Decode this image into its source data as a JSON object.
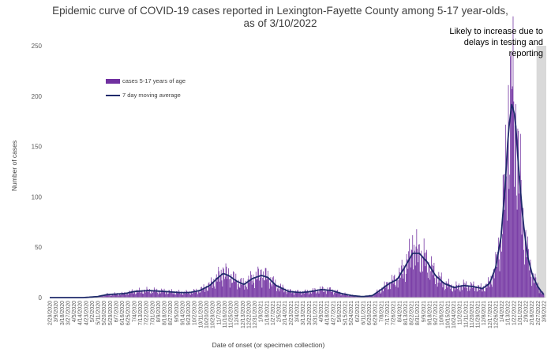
{
  "chart_data": {
    "type": "bar",
    "title": "Epidemic curve of COVID-19 cases reported in Lexington-Fayette County among 5-17 year-olds, as of 3/10/2022",
    "xlabel": "Date of onset (or specimen collection)",
    "ylabel": "Number of cases",
    "ylim": [
      0,
      250
    ],
    "yticks": [
      0,
      50,
      100,
      150,
      200,
      250
    ],
    "grid": false,
    "legend_position": "upper-left",
    "shaded_note": "Likely to increase due to delays in testing and reporting",
    "colors": {
      "bars": "#7030a0",
      "line": "#1f2a6b",
      "shade": "#d9d9d9"
    },
    "series": [
      {
        "name": "cases 5-17 years of age",
        "kind": "bar"
      },
      {
        "name": "7 day moving average",
        "kind": "line"
      }
    ],
    "x_tick_labels": [
      "2/29/2020",
      "3/9/2020",
      "3/18/2020",
      "3/27/2020",
      "4/5/2020",
      "4/14/2020",
      "4/23/2020",
      "5/2/2020",
      "5/11/2020",
      "5/20/2020",
      "5/29/2020",
      "6/7/2020",
      "6/16/2020",
      "6/25/2020",
      "7/4/2020",
      "7/13/2020",
      "7/22/2020",
      "7/31/2020",
      "8/9/2020",
      "8/18/2020",
      "8/27/2020",
      "9/5/2020",
      "9/14/2020",
      "9/23/2020",
      "10/2/2020",
      "10/11/2020",
      "10/20/2020",
      "10/29/2020",
      "11/7/2020",
      "11/16/2020",
      "11/25/2020",
      "12/4/2020",
      "12/13/2020",
      "12/22/2020",
      "12/31/2020",
      "1/9/2021",
      "1/18/2021",
      "1/27/2021",
      "2/5/2021",
      "2/14/2021",
      "2/23/2021",
      "3/4/2021",
      "3/13/2021",
      "3/22/2021",
      "3/31/2021",
      "4/9/2021",
      "4/18/2021",
      "4/27/2021",
      "5/6/2021",
      "5/15/2021",
      "5/24/2021",
      "6/2/2021",
      "6/11/2021",
      "6/20/2021",
      "6/29/2021",
      "7/8/2021",
      "7/17/2021",
      "7/26/2021",
      "8/4/2021",
      "8/13/2021",
      "8/22/2021",
      "8/31/2021",
      "9/9/2021",
      "9/18/2021",
      "9/27/2021",
      "10/6/2021",
      "10/15/2021",
      "10/24/2021",
      "11/2/2021",
      "11/11/2021",
      "11/20/2021",
      "11/29/2021",
      "12/8/2021",
      "12/17/2021",
      "12/26/2021",
      "1/4/2022",
      "1/13/2022",
      "1/22/2022",
      "1/31/2022",
      "2/9/2022",
      "2/18/2022",
      "2/27/2022",
      "3/8/2022"
    ],
    "x_start": "2/29/2020",
    "x_end": "3/8/2022",
    "shade_from": "2/25/2022",
    "moving_average_points": [
      [
        "2/29/2020",
        0
      ],
      [
        "4/20/2020",
        0
      ],
      [
        "5/10/2020",
        1
      ],
      [
        "5/25/2020",
        3
      ],
      [
        "6/20/2020",
        4
      ],
      [
        "7/4/2020",
        6
      ],
      [
        "7/25/2020",
        7
      ],
      [
        "8/20/2020",
        6
      ],
      [
        "9/10/2020",
        5
      ],
      [
        "9/25/2020",
        5
      ],
      [
        "10/10/2020",
        7
      ],
      [
        "10/25/2020",
        12
      ],
      [
        "11/5/2020",
        19
      ],
      [
        "11/14/2020",
        24
      ],
      [
        "11/22/2020",
        22
      ],
      [
        "12/5/2020",
        16
      ],
      [
        "12/15/2020",
        13
      ],
      [
        "12/28/2020",
        19
      ],
      [
        "1/10/2021",
        22
      ],
      [
        "1/20/2021",
        20
      ],
      [
        "2/1/2021",
        12
      ],
      [
        "2/20/2021",
        6
      ],
      [
        "3/10/2021",
        5
      ],
      [
        "3/25/2021",
        6
      ],
      [
        "4/10/2021",
        8
      ],
      [
        "4/25/2021",
        7
      ],
      [
        "5/10/2021",
        4
      ],
      [
        "5/25/2021",
        2
      ],
      [
        "6/10/2021",
        1
      ],
      [
        "6/25/2021",
        2
      ],
      [
        "7/8/2021",
        8
      ],
      [
        "7/20/2021",
        14
      ],
      [
        "8/1/2021",
        18
      ],
      [
        "8/12/2021",
        30
      ],
      [
        "8/24/2021",
        44
      ],
      [
        "9/3/2021",
        44
      ],
      [
        "9/15/2021",
        35
      ],
      [
        "9/27/2021",
        22
      ],
      [
        "10/10/2021",
        14
      ],
      [
        "10/25/2021",
        10
      ],
      [
        "11/8/2021",
        12
      ],
      [
        "11/22/2021",
        11
      ],
      [
        "12/6/2021",
        9
      ],
      [
        "12/17/2021",
        14
      ],
      [
        "12/26/2021",
        30
      ],
      [
        "1/3/2022",
        60
      ],
      [
        "1/9/2022",
        110
      ],
      [
        "1/14/2022",
        165
      ],
      [
        "1/19/2022",
        192
      ],
      [
        "1/24/2022",
        180
      ],
      [
        "1/29/2022",
        130
      ],
      [
        "2/5/2022",
        75
      ],
      [
        "2/12/2022",
        40
      ],
      [
        "2/19/2022",
        22
      ],
      [
        "2/26/2022",
        12
      ],
      [
        "3/4/2022",
        6
      ],
      [
        "3/8/2022",
        3
      ]
    ],
    "peaks": [
      [
        "11/14/2020",
        30
      ],
      [
        "1/10/2021",
        28
      ],
      [
        "8/24/2021",
        62
      ],
      [
        "1/14/2022",
        211
      ],
      [
        "1/19/2022",
        207
      ]
    ]
  }
}
